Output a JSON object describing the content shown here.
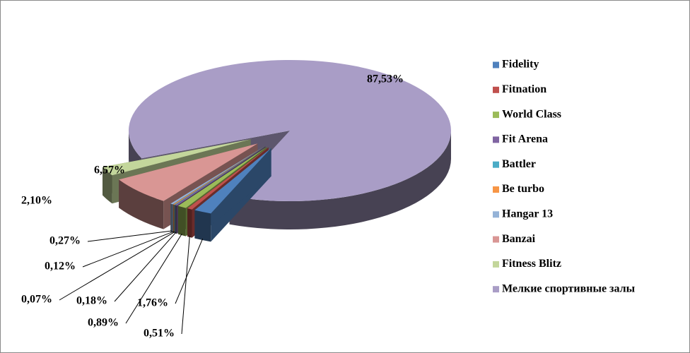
{
  "chart_data": {
    "type": "pie",
    "categories": [
      "Fidelity",
      "Fitnation",
      "World Class",
      "Fit Arena",
      "Battler",
      "Be turbo",
      "Hangar 13",
      "Banzai",
      "Fitness Blitz",
      "Мелкие спортивные залы"
    ],
    "values": [
      1.76,
      0.51,
      0.89,
      0.18,
      0.07,
      0.12,
      0.27,
      6.57,
      2.1,
      87.53
    ],
    "value_labels": [
      "1,76%",
      "0,51%",
      "0,89%",
      "0,18%",
      "0,07%",
      "0,12%",
      "0,27%",
      "6,57%",
      "2,10%",
      "87,53%"
    ],
    "colors": [
      "#4f81bd",
      "#c0504d",
      "#9bbb59",
      "#8064a2",
      "#4bacc6",
      "#f79646",
      "#95b3d7",
      "#d99694",
      "#c3d69b",
      "#a99dc6"
    ],
    "legend": "right"
  }
}
